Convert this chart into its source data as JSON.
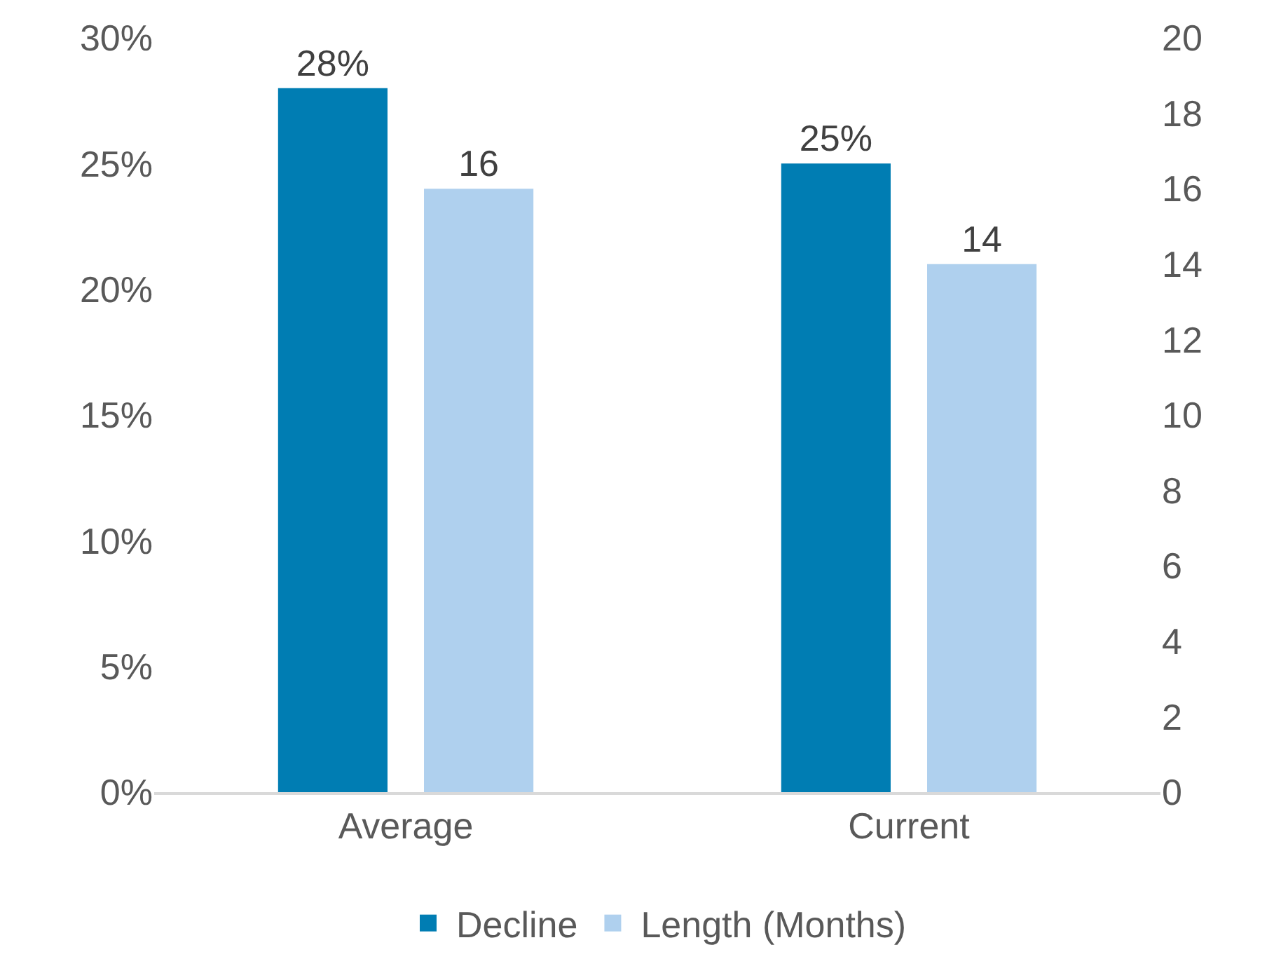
{
  "chart_data": {
    "type": "bar",
    "categories": [
      "Average",
      "Current"
    ],
    "series": [
      {
        "name": "Decline",
        "color": "#007db3",
        "values": [
          28,
          25
        ],
        "value_labels": [
          "28%",
          "25%"
        ]
      },
      {
        "name": "Length (Months)",
        "color": "#afd0ee",
        "values": [
          16,
          14
        ],
        "value_labels": [
          "16",
          "14"
        ],
        "axis": "y2"
      }
    ],
    "ylim": [
      0,
      30
    ],
    "yticks": [
      {
        "value": 0,
        "label": "0%"
      },
      {
        "value": 5,
        "label": "5%"
      },
      {
        "value": 10,
        "label": "10%"
      },
      {
        "value": 15,
        "label": "15%"
      },
      {
        "value": 20,
        "label": "20%"
      },
      {
        "value": 25,
        "label": "25%"
      },
      {
        "value": 30,
        "label": "30%"
      }
    ],
    "y2lim": [
      0,
      20
    ],
    "y2ticks": [
      0,
      2,
      4,
      6,
      8,
      10,
      12,
      14,
      16,
      18,
      20
    ],
    "grid": false,
    "legend": "bottom"
  }
}
